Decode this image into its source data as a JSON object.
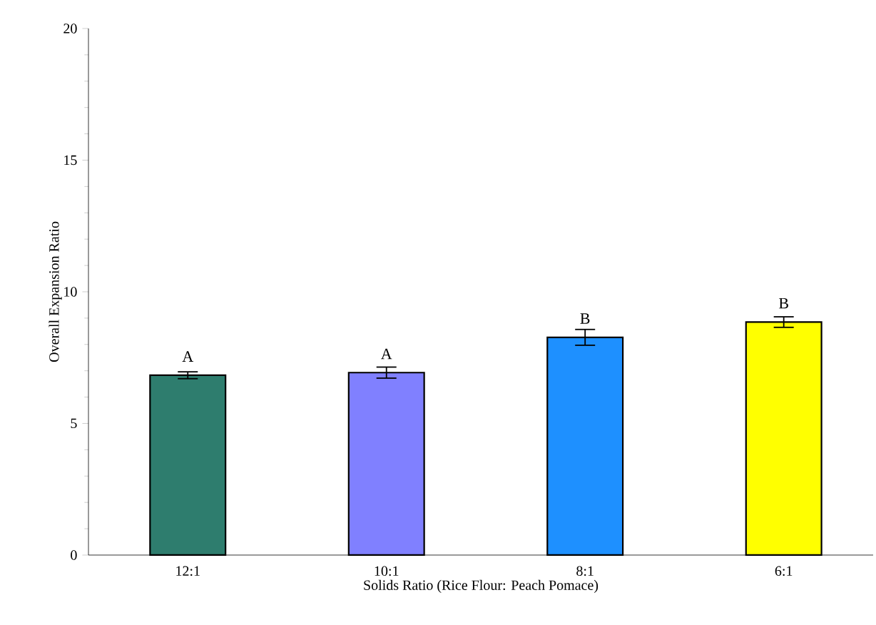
{
  "chart_data": {
    "type": "bar",
    "xlabel": "Solids Ratio (Rice Flour: Peach Pomace)",
    "ylabel": "Overall Expansion Ratio",
    "categories": [
      "12:1",
      "10:1",
      "8:1",
      "6:1"
    ],
    "values": [
      6.83,
      6.93,
      8.27,
      8.85
    ],
    "errors": [
      0.13,
      0.21,
      0.3,
      0.2
    ],
    "colors": [
      "#2e7d6e",
      "#8080ff",
      "#1e90ff",
      "#ffff00"
    ],
    "ylim": [
      0,
      20
    ],
    "yticks": [
      0,
      5,
      10,
      15,
      20
    ],
    "grid": false,
    "annotations": [
      "A",
      "A",
      "B",
      "B"
    ]
  }
}
